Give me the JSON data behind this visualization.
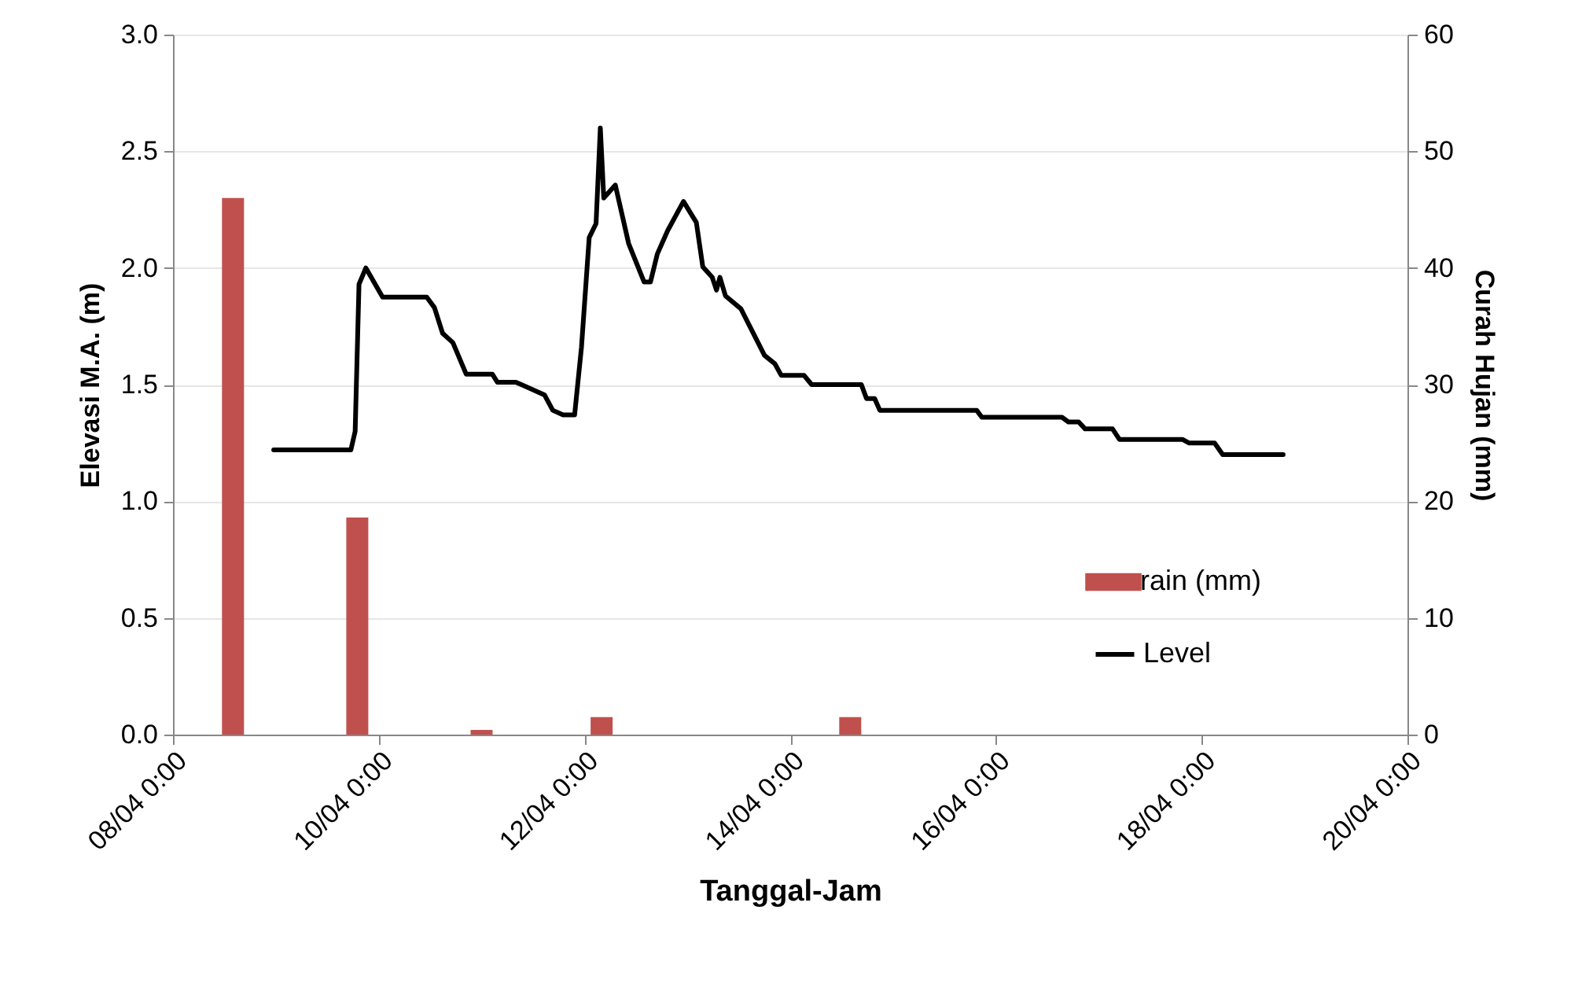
{
  "chart_data": {
    "type": "line",
    "xlabel": "Tanggal-Jam",
    "ylabel": "Elevasi M.A. (m)",
    "y2label": "Curah Hujan (mm)",
    "xlim": [
      "--04-08T00:00",
      "--04-20T00:00"
    ],
    "xticks": [
      {
        "value": "--04-08T00:00",
        "label": "08/04 0:00"
      },
      {
        "value": "--04-10T00:00",
        "label": "10/04 0:00"
      },
      {
        "value": "--04-12T00:00",
        "label": "12/04 0:00"
      },
      {
        "value": "--04-14T00:00",
        "label": "14/04 0:00"
      },
      {
        "value": "--04-16T00:00",
        "label": "16/04 0:00"
      },
      {
        "value": "--04-18T00:00",
        "label": "18/04 0:00"
      },
      {
        "value": "--04-20T00:00",
        "label": "20/04 0:00"
      }
    ],
    "ylim": [
      0,
      3
    ],
    "yticks": [
      {
        "value": 0,
        "label": "0.0"
      },
      {
        "value": 0.5,
        "label": "0.5"
      },
      {
        "value": 1,
        "label": "1.0"
      },
      {
        "value": 1.5,
        "label": "1.5"
      },
      {
        "value": 2,
        "label": "2.0"
      },
      {
        "value": 2.5,
        "label": "2.5"
      },
      {
        "value": 3,
        "label": "3.0"
      }
    ],
    "y2lim": [
      0,
      60
    ],
    "y2ticks": [
      0,
      10,
      20,
      30,
      40,
      50,
      60
    ],
    "grid": "y",
    "legend": "bottom right",
    "series": [
      {
        "name": "rain (mm)",
        "type": "bar",
        "axis": "y2",
        "color": "#c0504d",
        "x": [
          "--04-08T14:00",
          "--04-09T19:00",
          "--04-11T00:00",
          "--04-12T04:00",
          "--04-14T14:00"
        ],
        "values": [
          46,
          18.6,
          0.4,
          1.5,
          1.5
        ]
      },
      {
        "name": "Level",
        "color": "#000000",
        "x": [
          "--04-08T23:30",
          "--04-09T17:30",
          "--04-09T18:30",
          "--04-09T19:24",
          "--04-09T21:00",
          "--04-10T00:54",
          "--04-10T11:12",
          "--04-10T13:00",
          "--04-10T14:54",
          "--04-10T17:18",
          "--04-10T20:24",
          "--04-11T02:30",
          "--04-11T03:42",
          "--04-11T08:00",
          "--04-11T09:54",
          "--04-11T14:42",
          "--04-11T16:36",
          "--04-11T19:00",
          "--04-11T21:42",
          "--04-11T23:18",
          "--04-12T01:06",
          "--04-12T02:42",
          "--04-12T03:42",
          "--04-12T04:30",
          "--04-12T07:12",
          "--04-12T10:18",
          "--04-12T13:54",
          "--04-12T15:24",
          "--04-12T17:00",
          "--04-12T19:24",
          "--04-12T23:06",
          "--04-13T02:06",
          "--04-13T03:36",
          "--04-13T05:48",
          "--04-13T06:48",
          "--04-13T07:36",
          "--04-13T08:54",
          "--04-13T12:30",
          "--04-13T18:00",
          "--04-13T20:24",
          "--04-13T21:54",
          "--04-14T03:12",
          "--04-14T05:00",
          "--04-14T16:36",
          "--04-14T17:48",
          "--04-14T19:42",
          "--04-14T20:54",
          "--04-15T19:30",
          "--04-15T20:42",
          "--04-16T15:24",
          "--04-16T16:54",
          "--04-16T19:18",
          "--04-16T20:48",
          "--04-17T03:12",
          "--04-17T04:48",
          "--04-17T19:30",
          "--04-17T21:00",
          "--04-18T03:00",
          "--04-18T04:54",
          "--04-18T19:00"
        ],
        "values": [
          1.22,
          1.22,
          1.3,
          1.93,
          2.0,
          1.875,
          1.875,
          1.83,
          1.72,
          1.68,
          1.545,
          1.545,
          1.51,
          1.51,
          1.495,
          1.455,
          1.39,
          1.37,
          1.37,
          1.66,
          2.13,
          2.19,
          2.6,
          2.3,
          2.355,
          2.105,
          1.94,
          1.94,
          2.06,
          2.16,
          2.285,
          2.195,
          2.005,
          1.96,
          1.905,
          1.96,
          1.88,
          1.825,
          1.625,
          1.59,
          1.54,
          1.54,
          1.5,
          1.5,
          1.44,
          1.44,
          1.39,
          1.39,
          1.36,
          1.36,
          1.34,
          1.34,
          1.31,
          1.31,
          1.265,
          1.265,
          1.25,
          1.25,
          1.2,
          1.2
        ]
      }
    ]
  }
}
